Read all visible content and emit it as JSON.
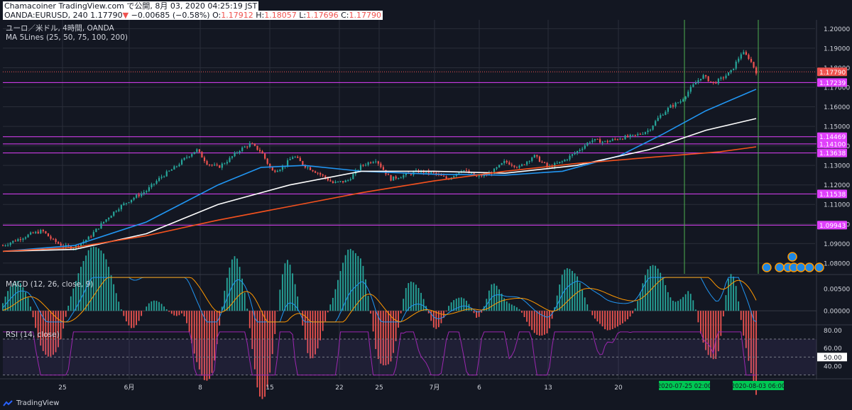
{
  "header": {
    "publisher": "Chamacoiner TradingView.com で公開, 8月 03, 2020 04:25:19 JST",
    "symbol": "OANDA:EURUSD, 240",
    "last": "1.17790",
    "change": "−0.00685 (−0.58%)",
    "o_label": "O:",
    "o": "1.17912",
    "h_label": "H:",
    "h": "1.18057",
    "l_label": "L:",
    "l": "1.17696",
    "c_label": "C:",
    "c": "1.17790"
  },
  "legend": {
    "instrument": "ユーロ／米ドル, 4時間, OANDA",
    "ma": "MA 5Lines (25, 50, 75, 100, 200)",
    "macd": "MACD (12, 26, close, 9)",
    "rsi": "RSI (14, close)"
  },
  "colors": {
    "background": "#131722",
    "grid": "#2a2e39",
    "up_candle": "#26a69a",
    "down_candle": "#ef5350",
    "ma_blue": "#2196f3",
    "ma_white": "#ffffff",
    "ma_red": "#f4511e",
    "level_line": "#e040fb",
    "vertical_line": "#4caf50",
    "rsi_line": "#9c27b0"
  },
  "footer": {
    "brand": "TradingView"
  },
  "chart_data": [
    {
      "type": "line",
      "title": "ユーロ／米ドル, 4時間, OANDA",
      "x_ticks": [
        "25",
        "6月",
        "8",
        "15",
        "22",
        "25",
        "7月",
        "6",
        "13",
        "20"
      ],
      "y_ticks": [
        "1.20000",
        "1.19000",
        "1.18000",
        "1.17000",
        "1.16000",
        "1.15000",
        "1.14000",
        "1.13000",
        "1.12000",
        "1.11000",
        "1.10000",
        "1.09000",
        "1.08000"
      ],
      "ylim": [
        1.0745,
        1.2045
      ],
      "price_labels": [
        "1.17790",
        "1.17239",
        "1.14469",
        "1.14100",
        "1.13638",
        "1.11538",
        "1.09943"
      ],
      "horizontal_levels": [
        1.17239,
        1.14469,
        1.141,
        1.13638,
        1.11538,
        1.09943
      ],
      "last_price": 1.1779,
      "vertical_markers": [
        "2020-07-25  02:00",
        "2020-08-03  06:00"
      ],
      "close_series": [
        {
          "x": 0,
          "y": 1.089
        },
        {
          "x": 0.02,
          "y": 1.092
        },
        {
          "x": 0.04,
          "y": 1.095
        },
        {
          "x": 0.055,
          "y": 1.0965
        },
        {
          "x": 0.07,
          "y": 1.0915
        },
        {
          "x": 0.085,
          "y": 1.0885
        },
        {
          "x": 0.1,
          "y": 1.088
        },
        {
          "x": 0.12,
          "y": 1.093
        },
        {
          "x": 0.14,
          "y": 1.101
        },
        {
          "x": 0.16,
          "y": 1.108
        },
        {
          "x": 0.18,
          "y": 1.113
        },
        {
          "x": 0.2,
          "y": 1.117
        },
        {
          "x": 0.22,
          "y": 1.124
        },
        {
          "x": 0.24,
          "y": 1.129
        },
        {
          "x": 0.255,
          "y": 1.134
        },
        {
          "x": 0.27,
          "y": 1.138
        },
        {
          "x": 0.285,
          "y": 1.131
        },
        {
          "x": 0.3,
          "y": 1.129
        },
        {
          "x": 0.315,
          "y": 1.133
        },
        {
          "x": 0.33,
          "y": 1.138
        },
        {
          "x": 0.345,
          "y": 1.141
        },
        {
          "x": 0.36,
          "y": 1.137
        },
        {
          "x": 0.375,
          "y": 1.127
        },
        {
          "x": 0.39,
          "y": 1.129
        },
        {
          "x": 0.405,
          "y": 1.135
        },
        {
          "x": 0.42,
          "y": 1.13
        },
        {
          "x": 0.44,
          "y": 1.126
        },
        {
          "x": 0.46,
          "y": 1.121
        },
        {
          "x": 0.48,
          "y": 1.122
        },
        {
          "x": 0.5,
          "y": 1.13
        },
        {
          "x": 0.52,
          "y": 1.133
        },
        {
          "x": 0.54,
          "y": 1.123
        },
        {
          "x": 0.56,
          "y": 1.125
        },
        {
          "x": 0.58,
          "y": 1.127
        },
        {
          "x": 0.6,
          "y": 1.126
        },
        {
          "x": 0.62,
          "y": 1.123
        },
        {
          "x": 0.64,
          "y": 1.128
        },
        {
          "x": 0.66,
          "y": 1.124
        },
        {
          "x": 0.68,
          "y": 1.126
        },
        {
          "x": 0.7,
          "y": 1.132
        },
        {
          "x": 0.72,
          "y": 1.129
        },
        {
          "x": 0.74,
          "y": 1.135
        },
        {
          "x": 0.76,
          "y": 1.129
        },
        {
          "x": 0.78,
          "y": 1.132
        },
        {
          "x": 0.8,
          "y": 1.137
        },
        {
          "x": 0.82,
          "y": 1.143
        },
        {
          "x": 0.84,
          "y": 1.142
        },
        {
          "x": 0.86,
          "y": 1.144
        },
        {
          "x": 0.88,
          "y": 1.145
        },
        {
          "x": 0.9,
          "y": 1.148
        },
        {
          "x": 0.915,
          "y": 1.155
        },
        {
          "x": 0.93,
          "y": 1.16
        },
        {
          "x": 0.945,
          "y": 1.163
        },
        {
          "x": 0.96,
          "y": 1.17
        },
        {
          "x": 0.975,
          "y": 1.176
        },
        {
          "x": 0.99,
          "y": 1.172
        },
        {
          "x": 1.0,
          "y": 1.174
        },
        {
          "x": 1.015,
          "y": 1.178
        },
        {
          "x": 1.03,
          "y": 1.188
        },
        {
          "x": 1.04,
          "y": 1.185
        },
        {
          "x": 1.05,
          "y": 1.1779
        }
      ],
      "series": [
        {
          "name": "MA 25",
          "color": "#2196f3",
          "points": [
            [
              0,
              1.086
            ],
            [
              0.1,
              1.089
            ],
            [
              0.2,
              1.101
            ],
            [
              0.3,
              1.12
            ],
            [
              0.36,
              1.129
            ],
            [
              0.42,
              1.13
            ],
            [
              0.5,
              1.127
            ],
            [
              0.6,
              1.1255
            ],
            [
              0.7,
              1.125
            ],
            [
              0.78,
              1.127
            ],
            [
              0.86,
              1.135
            ],
            [
              0.92,
              1.146
            ],
            [
              0.98,
              1.158
            ],
            [
              1.05,
              1.169
            ]
          ]
        },
        {
          "name": "MA 75",
          "color": "#ffffff",
          "points": [
            [
              0,
              1.086
            ],
            [
              0.1,
              1.087
            ],
            [
              0.2,
              1.095
            ],
            [
              0.3,
              1.11
            ],
            [
              0.4,
              1.12
            ],
            [
              0.5,
              1.127
            ],
            [
              0.6,
              1.127
            ],
            [
              0.7,
              1.126
            ],
            [
              0.8,
              1.13
            ],
            [
              0.9,
              1.138
            ],
            [
              0.98,
              1.148
            ],
            [
              1.05,
              1.154
            ]
          ]
        },
        {
          "name": "MA 200",
          "color": "#f4511e",
          "points": [
            [
              0,
              1.086
            ],
            [
              0.1,
              1.088
            ],
            [
              0.2,
              1.094
            ],
            [
              0.3,
              1.102
            ],
            [
              0.4,
              1.109
            ],
            [
              0.5,
              1.116
            ],
            [
              0.6,
              1.122
            ],
            [
              0.7,
              1.127
            ],
            [
              0.8,
              1.131
            ],
            [
              0.9,
              1.134
            ],
            [
              1.0,
              1.137
            ],
            [
              1.05,
              1.1395
            ]
          ]
        }
      ]
    },
    {
      "type": "bar",
      "title": "MACD (12, 26, close, 9)",
      "y_ticks": [
        "0.00500",
        "0.00000"
      ],
      "ylim": [
        -0.003,
        0.008
      ]
    },
    {
      "type": "line",
      "title": "RSI (14, close)",
      "y_ticks": [
        "80.00",
        "60.00",
        "50.00",
        "40.00"
      ],
      "ylim": [
        25,
        85
      ],
      "bands": [
        70,
        30
      ],
      "last_value": 50.0
    }
  ]
}
